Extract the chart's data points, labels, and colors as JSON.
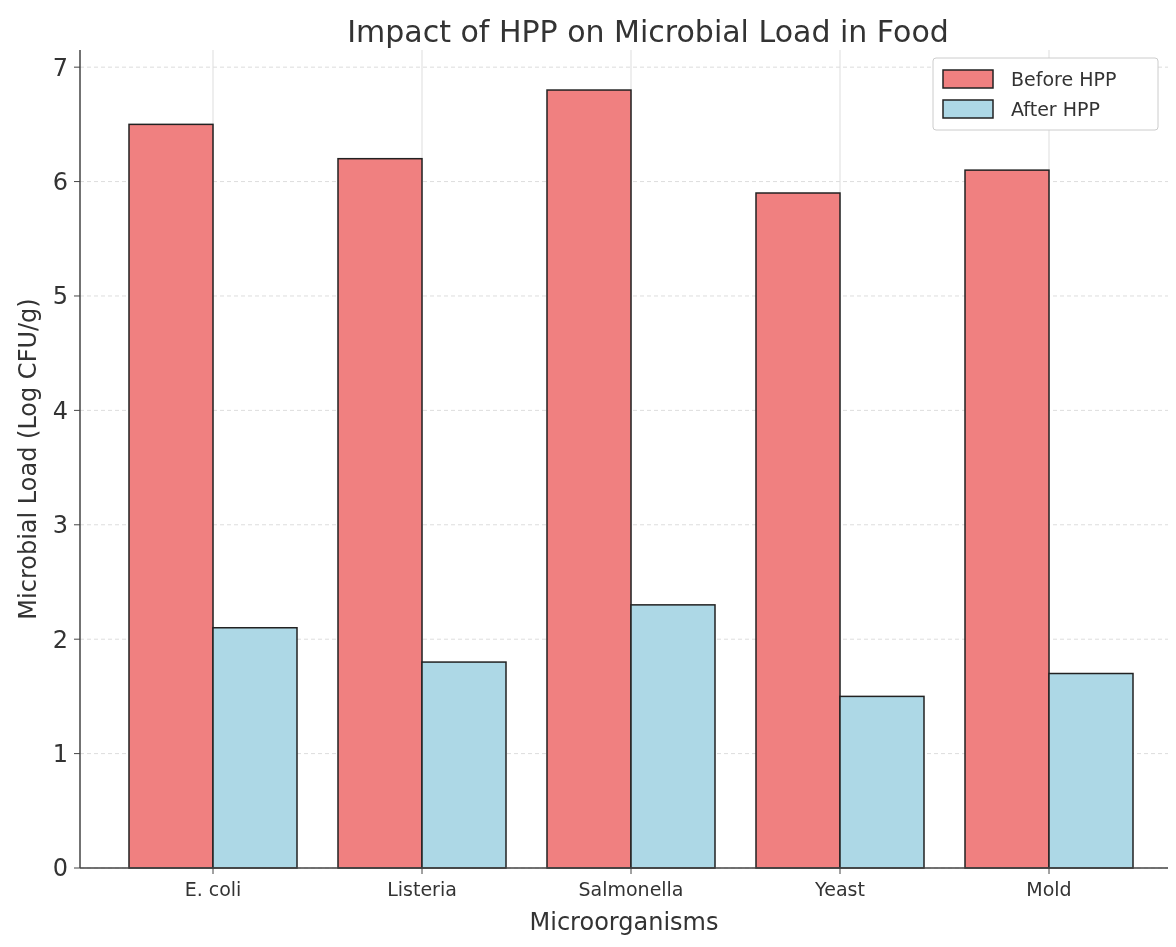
{
  "chart_data": {
    "type": "bar",
    "title": "Impact of HPP on Microbial Load in Food",
    "xlabel": "Microorganisms",
    "ylabel": "Microbial Load (Log CFU/g)",
    "categories": [
      "E. coli",
      "Listeria",
      "Salmonella",
      "Yeast",
      "Mold"
    ],
    "series": [
      {
        "name": "Before HPP",
        "color": "#f08080",
        "values": [
          6.5,
          6.2,
          6.8,
          5.9,
          6.1
        ]
      },
      {
        "name": "After HPP",
        "color": "#add8e6",
        "values": [
          2.1,
          1.8,
          2.3,
          1.5,
          1.7
        ]
      }
    ],
    "ylim": [
      0,
      7.15
    ],
    "yticks": [
      0,
      1,
      2,
      3,
      4,
      5,
      6,
      7
    ],
    "grid": true,
    "legend": "top right"
  }
}
